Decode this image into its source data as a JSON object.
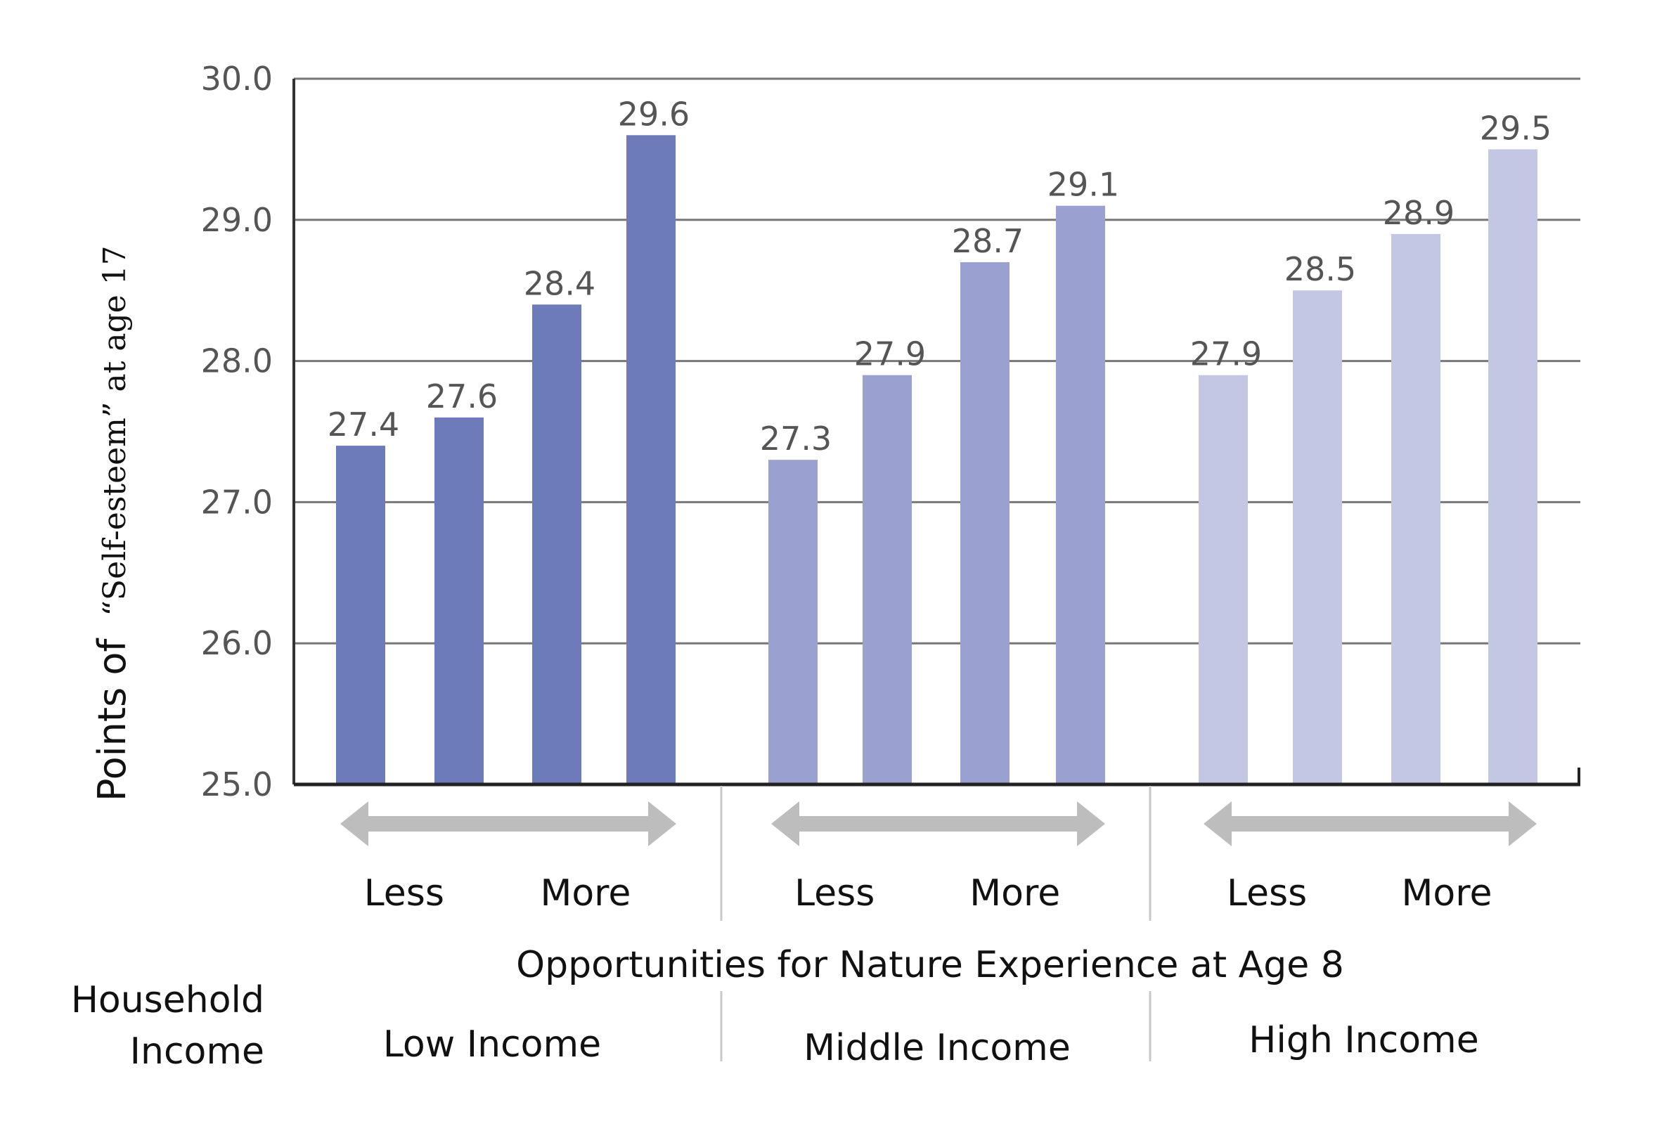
{
  "chart_data": {
    "type": "bar",
    "ylabel_main": "Points of",
    "ylabel_sub": "“Self-esteem” at age 17",
    "xlabel": "Opportunities for Nature Experience at Age 8",
    "row_label_line1": "Household",
    "row_label_line2": "Income",
    "ylim": [
      25.0,
      30.0
    ],
    "yticks": [
      "25.0",
      "26.0",
      "27.0",
      "28.0",
      "29.0",
      "30.0"
    ],
    "grid": true,
    "scale_less": "Less",
    "scale_more": "More",
    "groups": [
      {
        "name": "Low Income",
        "color": "#6e7bba",
        "values": [
          27.4,
          27.6,
          28.4,
          29.6
        ],
        "labels": [
          "27.4",
          "27.6",
          "28.4",
          "29.6"
        ]
      },
      {
        "name": "Middle Income",
        "color": "#9aa1d0",
        "values": [
          27.3,
          27.9,
          28.7,
          29.1
        ],
        "labels": [
          "27.3",
          "27.9",
          "28.7",
          "29.1"
        ]
      },
      {
        "name": "High Income",
        "color": "#c4c7e4",
        "values": [
          27.9,
          28.5,
          28.9,
          29.5
        ],
        "labels": [
          "27.9",
          "28.5",
          "28.9",
          "29.5"
        ]
      }
    ],
    "arrow_color": "#bdbdbd",
    "grid_color": "#777777"
  }
}
